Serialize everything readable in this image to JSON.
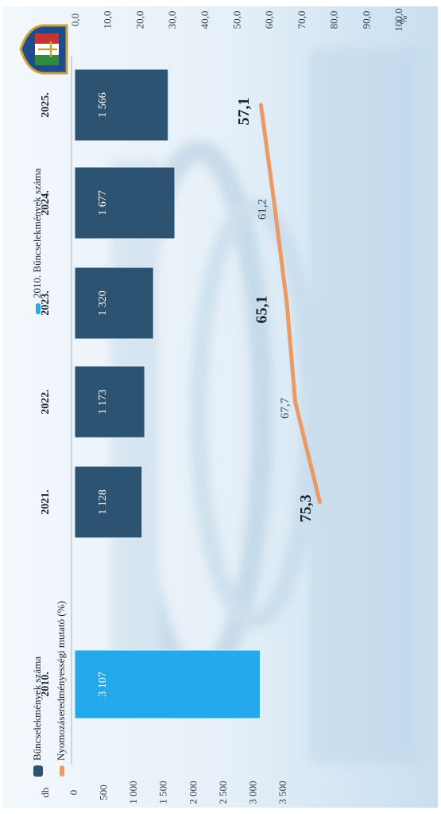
{
  "chart_data": {
    "type": "bar+line",
    "categories": [
      "2010.",
      "2021.",
      "2022.",
      "2023.",
      "2024.",
      "2025."
    ],
    "bars": {
      "values": [
        3107,
        1128,
        1173,
        1320,
        1677,
        1566
      ],
      "labels": [
        "3 107",
        "1 128",
        "1 173",
        "1 320",
        "1 677",
        "1 566"
      ],
      "colors": [
        "#23a9ec",
        "#2c5372",
        "#2c5372",
        "#2c5372",
        "#2c5372",
        "#2c5372"
      ]
    },
    "line": {
      "categories": [
        "2021.",
        "2022.",
        "2023.",
        "2024.",
        "2025."
      ],
      "values": [
        75.3,
        67.7,
        65.1,
        61.2,
        57.1
      ],
      "labels": [
        "75,3",
        "67,7",
        "65,1",
        "61,2",
        "57,1"
      ],
      "color": "#ec9a65"
    },
    "left_axis": {
      "unit": "db",
      "range": [
        0,
        3500
      ],
      "ticks": [
        0,
        500,
        1000,
        1500,
        2000,
        2500,
        3000,
        3500
      ],
      "tick_labels": [
        "0",
        "500",
        "1 000",
        "1 500",
        "2 000",
        "2 500",
        "3 000",
        "3 500"
      ]
    },
    "right_axis": {
      "unit": "%",
      "range": [
        0,
        100
      ],
      "ticks": [
        0,
        10,
        20,
        30,
        40,
        50,
        60,
        70,
        80,
        90,
        100
      ],
      "tick_labels": [
        "0,0",
        "10,0",
        "20,0",
        "30,0",
        "40,0",
        "50,0",
        "60,0",
        "70,0",
        "80,0",
        "90,0",
        "100,0"
      ]
    },
    "legend": [
      {
        "name": "Bűncselekmények száma",
        "color": "#2c5372"
      },
      {
        "name": "Nyomozáseredményességi mutató (%)",
        "color": "#ec9a65"
      },
      {
        "name": "2010. Bűncselekmények száma",
        "color": "#23a9ec"
      }
    ],
    "legend_position": "top",
    "orientation": "rotated 90° clockwise",
    "grid": false
  }
}
